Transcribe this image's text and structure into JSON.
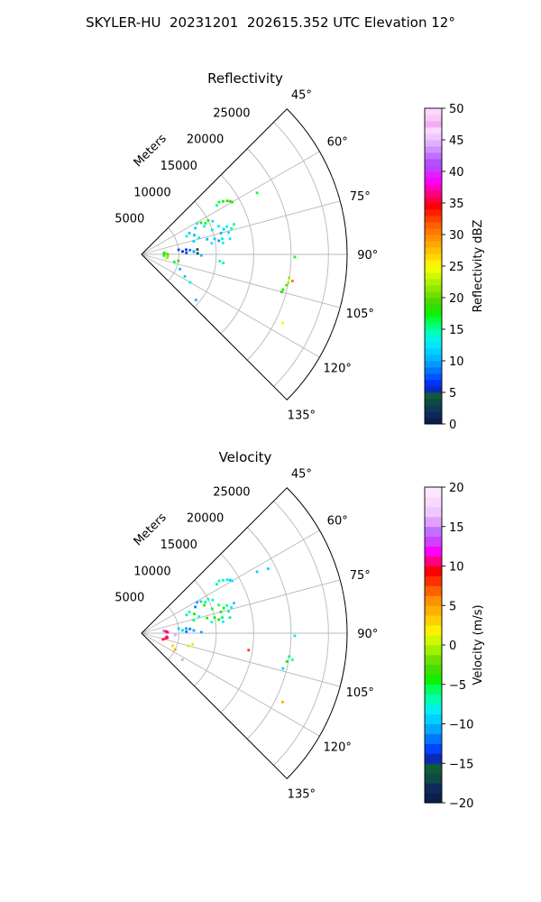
{
  "figure": {
    "suptitle": "SKYLER-HU  20231201  202615.352 UTC Elevation 12°"
  },
  "chart_data": [
    {
      "type": "scatter",
      "subtype": "polar-sector radar PPI",
      "title": "Reflectivity",
      "radial_label": "Meters",
      "radial_ticks": [
        "5000",
        "10000",
        "15000",
        "20000",
        "25000"
      ],
      "radial_tick_values": [
        5000,
        10000,
        15000,
        20000,
        25000
      ],
      "rmax": 27500,
      "azimuth_ticks": [
        "45°",
        "60°",
        "75°",
        "90°",
        "105°",
        "120°",
        "135°"
      ],
      "azimuth_tick_values": [
        45,
        60,
        75,
        90,
        105,
        120,
        135
      ],
      "azimuth_range": [
        45,
        135
      ],
      "grid": true,
      "colorbar": {
        "label": "Reflectivity dBZ",
        "min": 0,
        "max": 50,
        "ticks": [
          "0",
          "5",
          "10",
          "15",
          "20",
          "25",
          "30",
          "35",
          "40",
          "45",
          "50"
        ],
        "colors": [
          "#0b1f4a",
          "#0e2a5c",
          "#0d3a55",
          "#0f4a44",
          "#125a3c",
          "#0a2ab8",
          "#0033ff",
          "#0055ff",
          "#0077ff",
          "#0099ff",
          "#00b8ff",
          "#00d0ff",
          "#00e6ff",
          "#00f5e0",
          "#00ffb8",
          "#00ff80",
          "#00ff40",
          "#10f000",
          "#30e000",
          "#50d800",
          "#70e000",
          "#90e800",
          "#b0f000",
          "#d0f800",
          "#f0ff00",
          "#fff000",
          "#ffd800",
          "#ffc000",
          "#ffa800",
          "#ff9000",
          "#ff7800",
          "#ff6000",
          "#ff4000",
          "#ff2000",
          "#ff0000",
          "#ff0040",
          "#ff0080",
          "#ff00c0",
          "#ff00ff",
          "#e020ff",
          "#c040ff",
          "#b050ff",
          "#c070ff",
          "#d090ff",
          "#e0b0ff",
          "#f0c8ff",
          "#f8d8ff",
          "#f0b0f0",
          "#f8c8f8",
          "#fcd8fc"
        ]
      },
      "points": [
        {
          "az": 62,
          "r": 17500,
          "v": 16
        },
        {
          "az": 57,
          "r": 13000,
          "v": 17
        },
        {
          "az": 58,
          "r": 13500,
          "v": 18
        },
        {
          "az": 59,
          "r": 13800,
          "v": 19
        },
        {
          "az": 60,
          "r": 14000,
          "v": 17
        },
        {
          "az": 56,
          "r": 12500,
          "v": 16
        },
        {
          "az": 57,
          "r": 12000,
          "v": 15
        },
        {
          "az": 63,
          "r": 10000,
          "v": 17
        },
        {
          "az": 64,
          "r": 9500,
          "v": 16
        },
        {
          "az": 62,
          "r": 9000,
          "v": 18
        },
        {
          "az": 65,
          "r": 10500,
          "v": 12
        },
        {
          "az": 66,
          "r": 9200,
          "v": 13
        },
        {
          "az": 61,
          "r": 8500,
          "v": 12
        },
        {
          "az": 64,
          "r": 8000,
          "v": 11
        },
        {
          "az": 70,
          "r": 11000,
          "v": 12
        },
        {
          "az": 72,
          "r": 12000,
          "v": 13
        },
        {
          "az": 73,
          "r": 11500,
          "v": 11
        },
        {
          "az": 74,
          "r": 12500,
          "v": 14
        },
        {
          "az": 71,
          "r": 10000,
          "v": 12
        },
        {
          "az": 75,
          "r": 11000,
          "v": 10
        },
        {
          "az": 76,
          "r": 12000,
          "v": 12
        },
        {
          "az": 72,
          "r": 13000,
          "v": 15
        },
        {
          "az": 78,
          "r": 10000,
          "v": 11
        },
        {
          "az": 79,
          "r": 11000,
          "v": 13
        },
        {
          "az": 80,
          "r": 10500,
          "v": 9
        },
        {
          "az": 81,
          "r": 9500,
          "v": 12
        },
        {
          "az": 77,
          "r": 9000,
          "v": 10
        },
        {
          "az": 80,
          "r": 12000,
          "v": 12
        },
        {
          "az": 82,
          "r": 11000,
          "v": 14
        },
        {
          "az": 84,
          "r": 6000,
          "v": 6
        },
        {
          "az": 85,
          "r": 6500,
          "v": 8
        },
        {
          "az": 86,
          "r": 5500,
          "v": 5
        },
        {
          "az": 83,
          "r": 5000,
          "v": 7
        },
        {
          "az": 87,
          "r": 7000,
          "v": 9
        },
        {
          "az": 88,
          "r": 6000,
          "v": 6
        },
        {
          "az": 85,
          "r": 7500,
          "v": 4
        },
        {
          "az": 66,
          "r": 7000,
          "v": 11
        },
        {
          "az": 68,
          "r": 6500,
          "v": 13
        },
        {
          "az": 70,
          "r": 7500,
          "v": 10
        },
        {
          "az": 74,
          "r": 8000,
          "v": 12
        },
        {
          "az": 76,
          "r": 7200,
          "v": 11
        },
        {
          "az": 86,
          "r": 3000,
          "v": 18
        },
        {
          "az": 88,
          "r": 3200,
          "v": 20
        },
        {
          "az": 90,
          "r": 3500,
          "v": 19
        },
        {
          "az": 93,
          "r": 3000,
          "v": 17
        },
        {
          "az": 96,
          "r": 3500,
          "v": 21
        },
        {
          "az": 98,
          "r": 3400,
          "v": 22
        },
        {
          "az": 100,
          "r": 5000,
          "v": 18
        },
        {
          "az": 103,
          "r": 4500,
          "v": 16
        },
        {
          "az": 111,
          "r": 5500,
          "v": 10
        },
        {
          "az": 117,
          "r": 6500,
          "v": 11
        },
        {
          "az": 120,
          "r": 7500,
          "v": 12
        },
        {
          "az": 95,
          "r": 10500,
          "v": 13
        },
        {
          "az": 96,
          "r": 11000,
          "v": 15
        },
        {
          "az": 89,
          "r": 7500,
          "v": 3
        },
        {
          "az": 91,
          "r": 8000,
          "v": 10
        },
        {
          "az": 130,
          "r": 9500,
          "v": 10
        },
        {
          "az": 91,
          "r": 20500,
          "v": 16
        },
        {
          "az": 99,
          "r": 20000,
          "v": 21
        },
        {
          "az": 100,
          "r": 20500,
          "v": 30
        },
        {
          "az": 101,
          "r": 20000,
          "v": 22
        },
        {
          "az": 102,
          "r": 19800,
          "v": 20
        },
        {
          "az": 104,
          "r": 19500,
          "v": 17
        },
        {
          "az": 105,
          "r": 19400,
          "v": 18
        },
        {
          "az": 116,
          "r": 21000,
          "v": 24
        }
      ]
    },
    {
      "type": "scatter",
      "subtype": "polar-sector radar PPI",
      "title": "Velocity",
      "radial_label": "Meters",
      "radial_ticks": [
        "5000",
        "10000",
        "15000",
        "20000",
        "25000"
      ],
      "radial_tick_values": [
        5000,
        10000,
        15000,
        20000,
        25000
      ],
      "rmax": 27500,
      "azimuth_ticks": [
        "45°",
        "60°",
        "75°",
        "90°",
        "105°",
        "120°",
        "135°"
      ],
      "azimuth_tick_values": [
        45,
        60,
        75,
        90,
        105,
        120,
        135
      ],
      "azimuth_range": [
        45,
        135
      ],
      "grid": true,
      "colorbar": {
        "label": "Velocity (m/s)",
        "min": -20,
        "max": 20,
        "ticks": [
          "−20",
          "−15",
          "−10",
          "−5",
          "0",
          "5",
          "10",
          "15",
          "20"
        ],
        "colors": [
          "#0b1f4a",
          "#0e2a5c",
          "#0f4a44",
          "#125a3c",
          "#0a2ab8",
          "#0044ff",
          "#0077ff",
          "#00a8ff",
          "#00d0ff",
          "#00f0f0",
          "#00ffb0",
          "#00ff60",
          "#10f000",
          "#40e000",
          "#70e000",
          "#a0f000",
          "#d0f800",
          "#fff000",
          "#ffd000",
          "#ffb000",
          "#ff9000",
          "#ff6000",
          "#ff3000",
          "#ff0000",
          "#ff0080",
          "#ff00ff",
          "#d040ff",
          "#c070ff",
          "#e0a0ff",
          "#f0c8ff",
          "#f8d8ff",
          "#fce8fc"
        ]
      },
      "points": [
        {
          "az": 62,
          "r": 17500,
          "v": -10
        },
        {
          "az": 57,
          "r": 13000,
          "v": -7
        },
        {
          "az": 58,
          "r": 13500,
          "v": -8
        },
        {
          "az": 59,
          "r": 13800,
          "v": -9
        },
        {
          "az": 60,
          "r": 14000,
          "v": -8
        },
        {
          "az": 56,
          "r": 12500,
          "v": -7
        },
        {
          "az": 57,
          "r": 12000,
          "v": -6
        },
        {
          "az": 63,
          "r": 10000,
          "v": -8
        },
        {
          "az": 64,
          "r": 9500,
          "v": -6
        },
        {
          "az": 62,
          "r": 9000,
          "v": -9
        },
        {
          "az": 65,
          "r": 10500,
          "v": -7
        },
        {
          "az": 66,
          "r": 9200,
          "v": -5
        },
        {
          "az": 61,
          "r": 8500,
          "v": -11
        },
        {
          "az": 64,
          "r": 8000,
          "v": -12
        },
        {
          "az": 70,
          "r": 11000,
          "v": -6
        },
        {
          "az": 72,
          "r": 12000,
          "v": -7
        },
        {
          "az": 73,
          "r": 11500,
          "v": -5
        },
        {
          "az": 74,
          "r": 12500,
          "v": -8
        },
        {
          "az": 71,
          "r": 10000,
          "v": -6
        },
        {
          "az": 75,
          "r": 11000,
          "v": -4
        },
        {
          "az": 76,
          "r": 12000,
          "v": -7
        },
        {
          "az": 72,
          "r": 13000,
          "v": -9
        },
        {
          "az": 78,
          "r": 10000,
          "v": -5
        },
        {
          "az": 79,
          "r": 11000,
          "v": -6
        },
        {
          "az": 80,
          "r": 10500,
          "v": -4
        },
        {
          "az": 81,
          "r": 9500,
          "v": -7
        },
        {
          "az": 77,
          "r": 9000,
          "v": -5
        },
        {
          "az": 80,
          "r": 12000,
          "v": -6
        },
        {
          "az": 82,
          "r": 11000,
          "v": -8
        },
        {
          "az": 84,
          "r": 6000,
          "v": -11
        },
        {
          "az": 85,
          "r": 6500,
          "v": -12
        },
        {
          "az": 86,
          "r": 5500,
          "v": -10
        },
        {
          "az": 83,
          "r": 5000,
          "v": -9
        },
        {
          "az": 87,
          "r": 7000,
          "v": -11
        },
        {
          "az": 88,
          "r": 6000,
          "v": -12
        },
        {
          "az": 66,
          "r": 7000,
          "v": -7
        },
        {
          "az": 68,
          "r": 6500,
          "v": -6
        },
        {
          "az": 70,
          "r": 7500,
          "v": -5
        },
        {
          "az": 74,
          "r": 8000,
          "v": -7
        },
        {
          "az": 76,
          "r": 7200,
          "v": -6
        },
        {
          "az": 84,
          "r": 3000,
          "v": 14
        },
        {
          "az": 86,
          "r": 3300,
          "v": 9
        },
        {
          "az": 88,
          "r": 3500,
          "v": 11
        },
        {
          "az": 93,
          "r": 4500,
          "v": 16
        },
        {
          "az": 91,
          "r": 4800,
          "v": 17
        },
        {
          "az": 98,
          "r": 3400,
          "v": 8
        },
        {
          "az": 100,
          "r": 3500,
          "v": 10
        },
        {
          "az": 102,
          "r": 3300,
          "v": 11
        },
        {
          "az": 106,
          "r": 3000,
          "v": 9
        },
        {
          "az": 105,
          "r": 6500,
          "v": 0
        },
        {
          "az": 102,
          "r": 7000,
          "v": 1
        },
        {
          "az": 112,
          "r": 4500,
          "v": 3
        },
        {
          "az": 116,
          "r": 5000,
          "v": 4
        },
        {
          "az": 123,
          "r": 6500,
          "v": 16
        },
        {
          "az": 89,
          "r": 8000,
          "v": -11
        },
        {
          "az": 63,
          "r": 19000,
          "v": -10
        },
        {
          "az": 91,
          "r": 20500,
          "v": -8
        },
        {
          "az": 99,
          "r": 20000,
          "v": -6
        },
        {
          "az": 100,
          "r": 20500,
          "v": -7
        },
        {
          "az": 101,
          "r": 19800,
          "v": -5
        },
        {
          "az": 104,
          "r": 19500,
          "v": -9
        },
        {
          "az": 99,
          "r": 14500,
          "v": 8
        },
        {
          "az": 116,
          "r": 21000,
          "v": 4
        }
      ]
    }
  ]
}
